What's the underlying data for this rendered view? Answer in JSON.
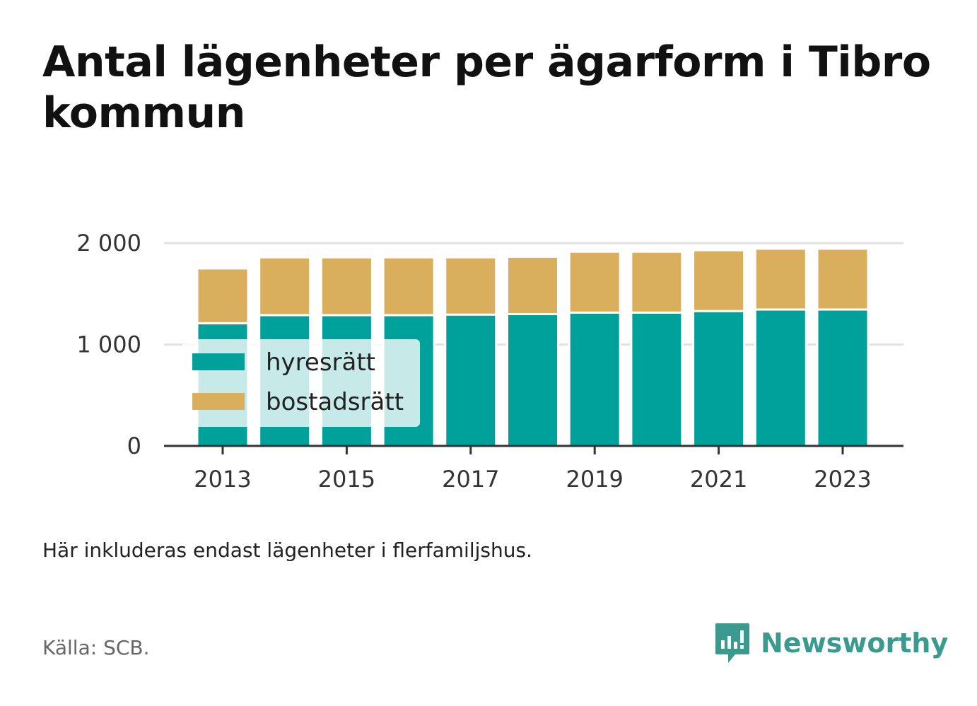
{
  "header": {
    "title": "Antal lägenheter per ägarform i Tibro kommun"
  },
  "footer": {
    "note": "Här inkluderas endast lägenheter i flerfamiljshus.",
    "source": "Källa: SCB.",
    "brand": "Newsworthy"
  },
  "colors": {
    "hyresratt": "#00a19a",
    "bostadsratt": "#d9ae5c",
    "brand": "#3a9a8e"
  },
  "chart_data": {
    "type": "bar",
    "stacked": true,
    "title": "Antal lägenheter per ägarform i Tibro kommun",
    "xlabel": "",
    "ylabel": "",
    "categories": [
      "2013",
      "2014",
      "2015",
      "2016",
      "2017",
      "2018",
      "2019",
      "2020",
      "2021",
      "2022",
      "2023"
    ],
    "x_tick_labels": [
      "2013",
      "2015",
      "2017",
      "2019",
      "2021",
      "2023"
    ],
    "y_tick_labels": [
      "0",
      "1 000",
      "2 000"
    ],
    "y_ticks": [
      0,
      1000,
      2000
    ],
    "ylim": [
      0,
      2000
    ],
    "grid": true,
    "legend_position": "bottom-left",
    "series": [
      {
        "name": "hyresrätt",
        "color": "#00a19a",
        "values": [
          1210,
          1290,
          1290,
          1290,
          1295,
          1300,
          1315,
          1315,
          1330,
          1345,
          1345
        ]
      },
      {
        "name": "bostadsrätt",
        "color": "#d9ae5c",
        "values": [
          540,
          570,
          570,
          570,
          565,
          565,
          600,
          600,
          600,
          600,
          600
        ]
      }
    ]
  }
}
